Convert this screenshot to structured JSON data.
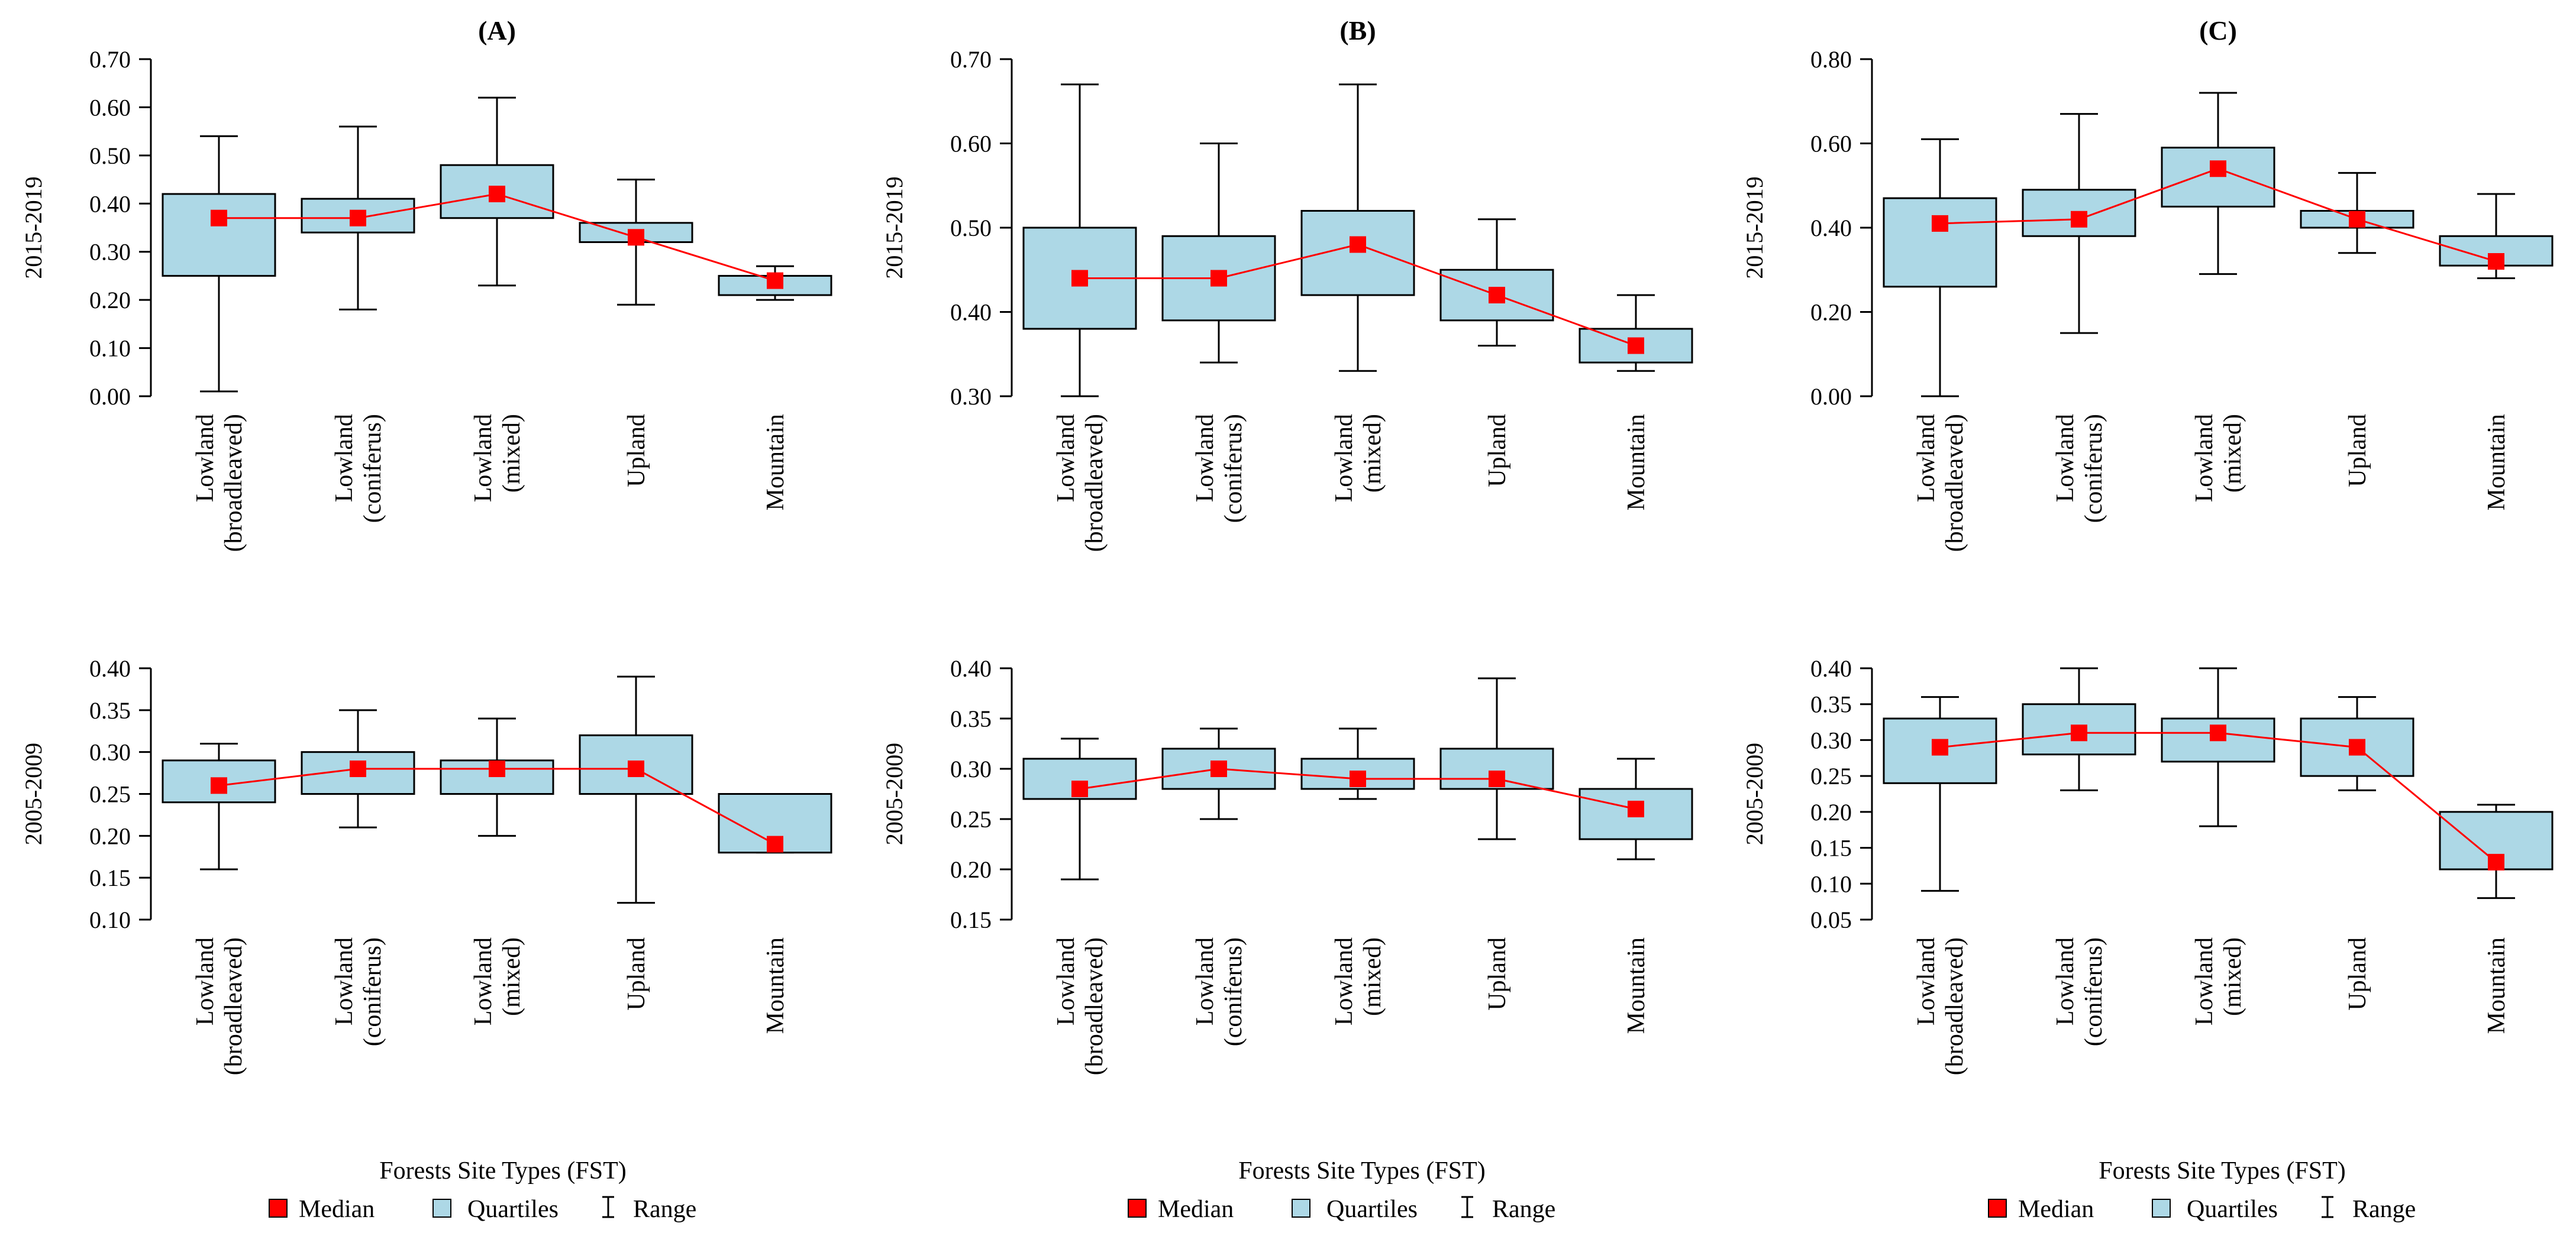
{
  "chart_data": [
    {
      "type": "box",
      "panel_title": "(A)",
      "ylabel": "2015-2019",
      "ylim": [
        0,
        0.7
      ],
      "yticks": [
        "0.00",
        "0.10",
        "0.20",
        "0.30",
        "0.40",
        "0.50",
        "0.60",
        "0.70"
      ],
      "categories": [
        "Lowland (broadleaved)",
        "Lowland (coniferus)",
        "Lowland (mixed)",
        "Upland",
        "Mountain"
      ],
      "min": [
        0.01,
        0.18,
        0.23,
        0.19,
        0.2
      ],
      "q1": [
        0.25,
        0.34,
        0.37,
        0.32,
        0.21
      ],
      "median": [
        0.37,
        0.37,
        0.42,
        0.33,
        0.24
      ],
      "q3": [
        0.42,
        0.41,
        0.48,
        0.36,
        0.25
      ],
      "max": [
        0.54,
        0.56,
        0.62,
        0.45,
        0.27
      ]
    },
    {
      "type": "box",
      "panel_title": "(B)",
      "ylabel": "2015-2019",
      "ylim": [
        0.3,
        0.7
      ],
      "yticks": [
        "0.30",
        "0.40",
        "0.50",
        "0.60",
        "0.70"
      ],
      "categories": [
        "Lowland (broadleaved)",
        "Lowland (coniferus)",
        "Lowland (mixed)",
        "Upland",
        "Mountain"
      ],
      "min": [
        0.3,
        0.34,
        0.33,
        0.36,
        0.33
      ],
      "q1": [
        0.38,
        0.39,
        0.42,
        0.39,
        0.34
      ],
      "median": [
        0.44,
        0.44,
        0.48,
        0.42,
        0.36
      ],
      "q3": [
        0.5,
        0.49,
        0.52,
        0.45,
        0.38
      ],
      "max": [
        0.67,
        0.6,
        0.67,
        0.51,
        0.42
      ]
    },
    {
      "type": "box",
      "panel_title": "(C)",
      "ylabel": "2015-2019",
      "ylim": [
        0,
        0.8
      ],
      "yticks": [
        "0.00",
        "0.20",
        "0.40",
        "0.60",
        "0.80"
      ],
      "categories": [
        "Lowland (broadleaved)",
        "Lowland (coniferus)",
        "Lowland (mixed)",
        "Upland",
        "Mountain"
      ],
      "min": [
        0.0,
        0.15,
        0.29,
        0.34,
        0.28
      ],
      "q1": [
        0.26,
        0.38,
        0.45,
        0.4,
        0.31
      ],
      "median": [
        0.41,
        0.42,
        0.54,
        0.42,
        0.32
      ],
      "q3": [
        0.47,
        0.49,
        0.59,
        0.44,
        0.38
      ],
      "max": [
        0.61,
        0.67,
        0.72,
        0.53,
        0.48
      ]
    },
    {
      "type": "box",
      "panel_title": "",
      "ylabel": "2005-2009",
      "ylim": [
        0.1,
        0.4
      ],
      "yticks": [
        "0.10",
        "0.15",
        "0.20",
        "0.25",
        "0.30",
        "0.35",
        "0.40"
      ],
      "categories": [
        "Lowland (broadleaved)",
        "Lowland (coniferus)",
        "Lowland (mixed)",
        "Upland",
        "Mountain"
      ],
      "min": [
        0.16,
        0.21,
        0.2,
        0.12,
        0.18
      ],
      "q1": [
        0.24,
        0.25,
        0.25,
        0.25,
        0.18
      ],
      "median": [
        0.26,
        0.28,
        0.28,
        0.28,
        0.19
      ],
      "q3": [
        0.29,
        0.3,
        0.29,
        0.32,
        0.25
      ],
      "max": [
        0.31,
        0.35,
        0.34,
        0.39,
        0.25
      ]
    },
    {
      "type": "box",
      "panel_title": "",
      "ylabel": "2005-2009",
      "ylim": [
        0.15,
        0.4
      ],
      "yticks": [
        "0.15",
        "0.20",
        "0.25",
        "0.30",
        "0.35",
        "0.40"
      ],
      "categories": [
        "Lowland (broadleaved)",
        "Lowland (coniferus)",
        "Lowland (mixed)",
        "Upland",
        "Mountain"
      ],
      "min": [
        0.19,
        0.25,
        0.27,
        0.23,
        0.21
      ],
      "q1": [
        0.27,
        0.28,
        0.28,
        0.28,
        0.23
      ],
      "median": [
        0.28,
        0.3,
        0.29,
        0.29,
        0.26
      ],
      "q3": [
        0.31,
        0.32,
        0.31,
        0.32,
        0.28
      ],
      "max": [
        0.33,
        0.34,
        0.34,
        0.39,
        0.31
      ]
    },
    {
      "type": "box",
      "panel_title": "",
      "ylabel": "2005-2009",
      "ylim": [
        0.05,
        0.4
      ],
      "yticks": [
        "0.05",
        "0.10",
        "0.15",
        "0.20",
        "0.25",
        "0.30",
        "0.35",
        "0.40"
      ],
      "categories": [
        "Lowland (broadleaved)",
        "Lowland (coniferus)",
        "Lowland (mixed)",
        "Upland",
        "Mountain"
      ],
      "min": [
        0.09,
        0.23,
        0.18,
        0.23,
        0.08
      ],
      "q1": [
        0.24,
        0.28,
        0.27,
        0.25,
        0.12
      ],
      "median": [
        0.29,
        0.31,
        0.31,
        0.29,
        0.13
      ],
      "q3": [
        0.33,
        0.35,
        0.33,
        0.33,
        0.2
      ],
      "max": [
        0.36,
        0.4,
        0.4,
        0.36,
        0.21
      ]
    }
  ],
  "xlabel": "Forests Site Types (FST)",
  "legend": {
    "median": "Median",
    "quartiles": "Quartiles",
    "range": "Range"
  },
  "colors": {
    "box": "#add8e6",
    "median": "#ff0000",
    "line": "#ff0000",
    "stroke": "#000000"
  }
}
